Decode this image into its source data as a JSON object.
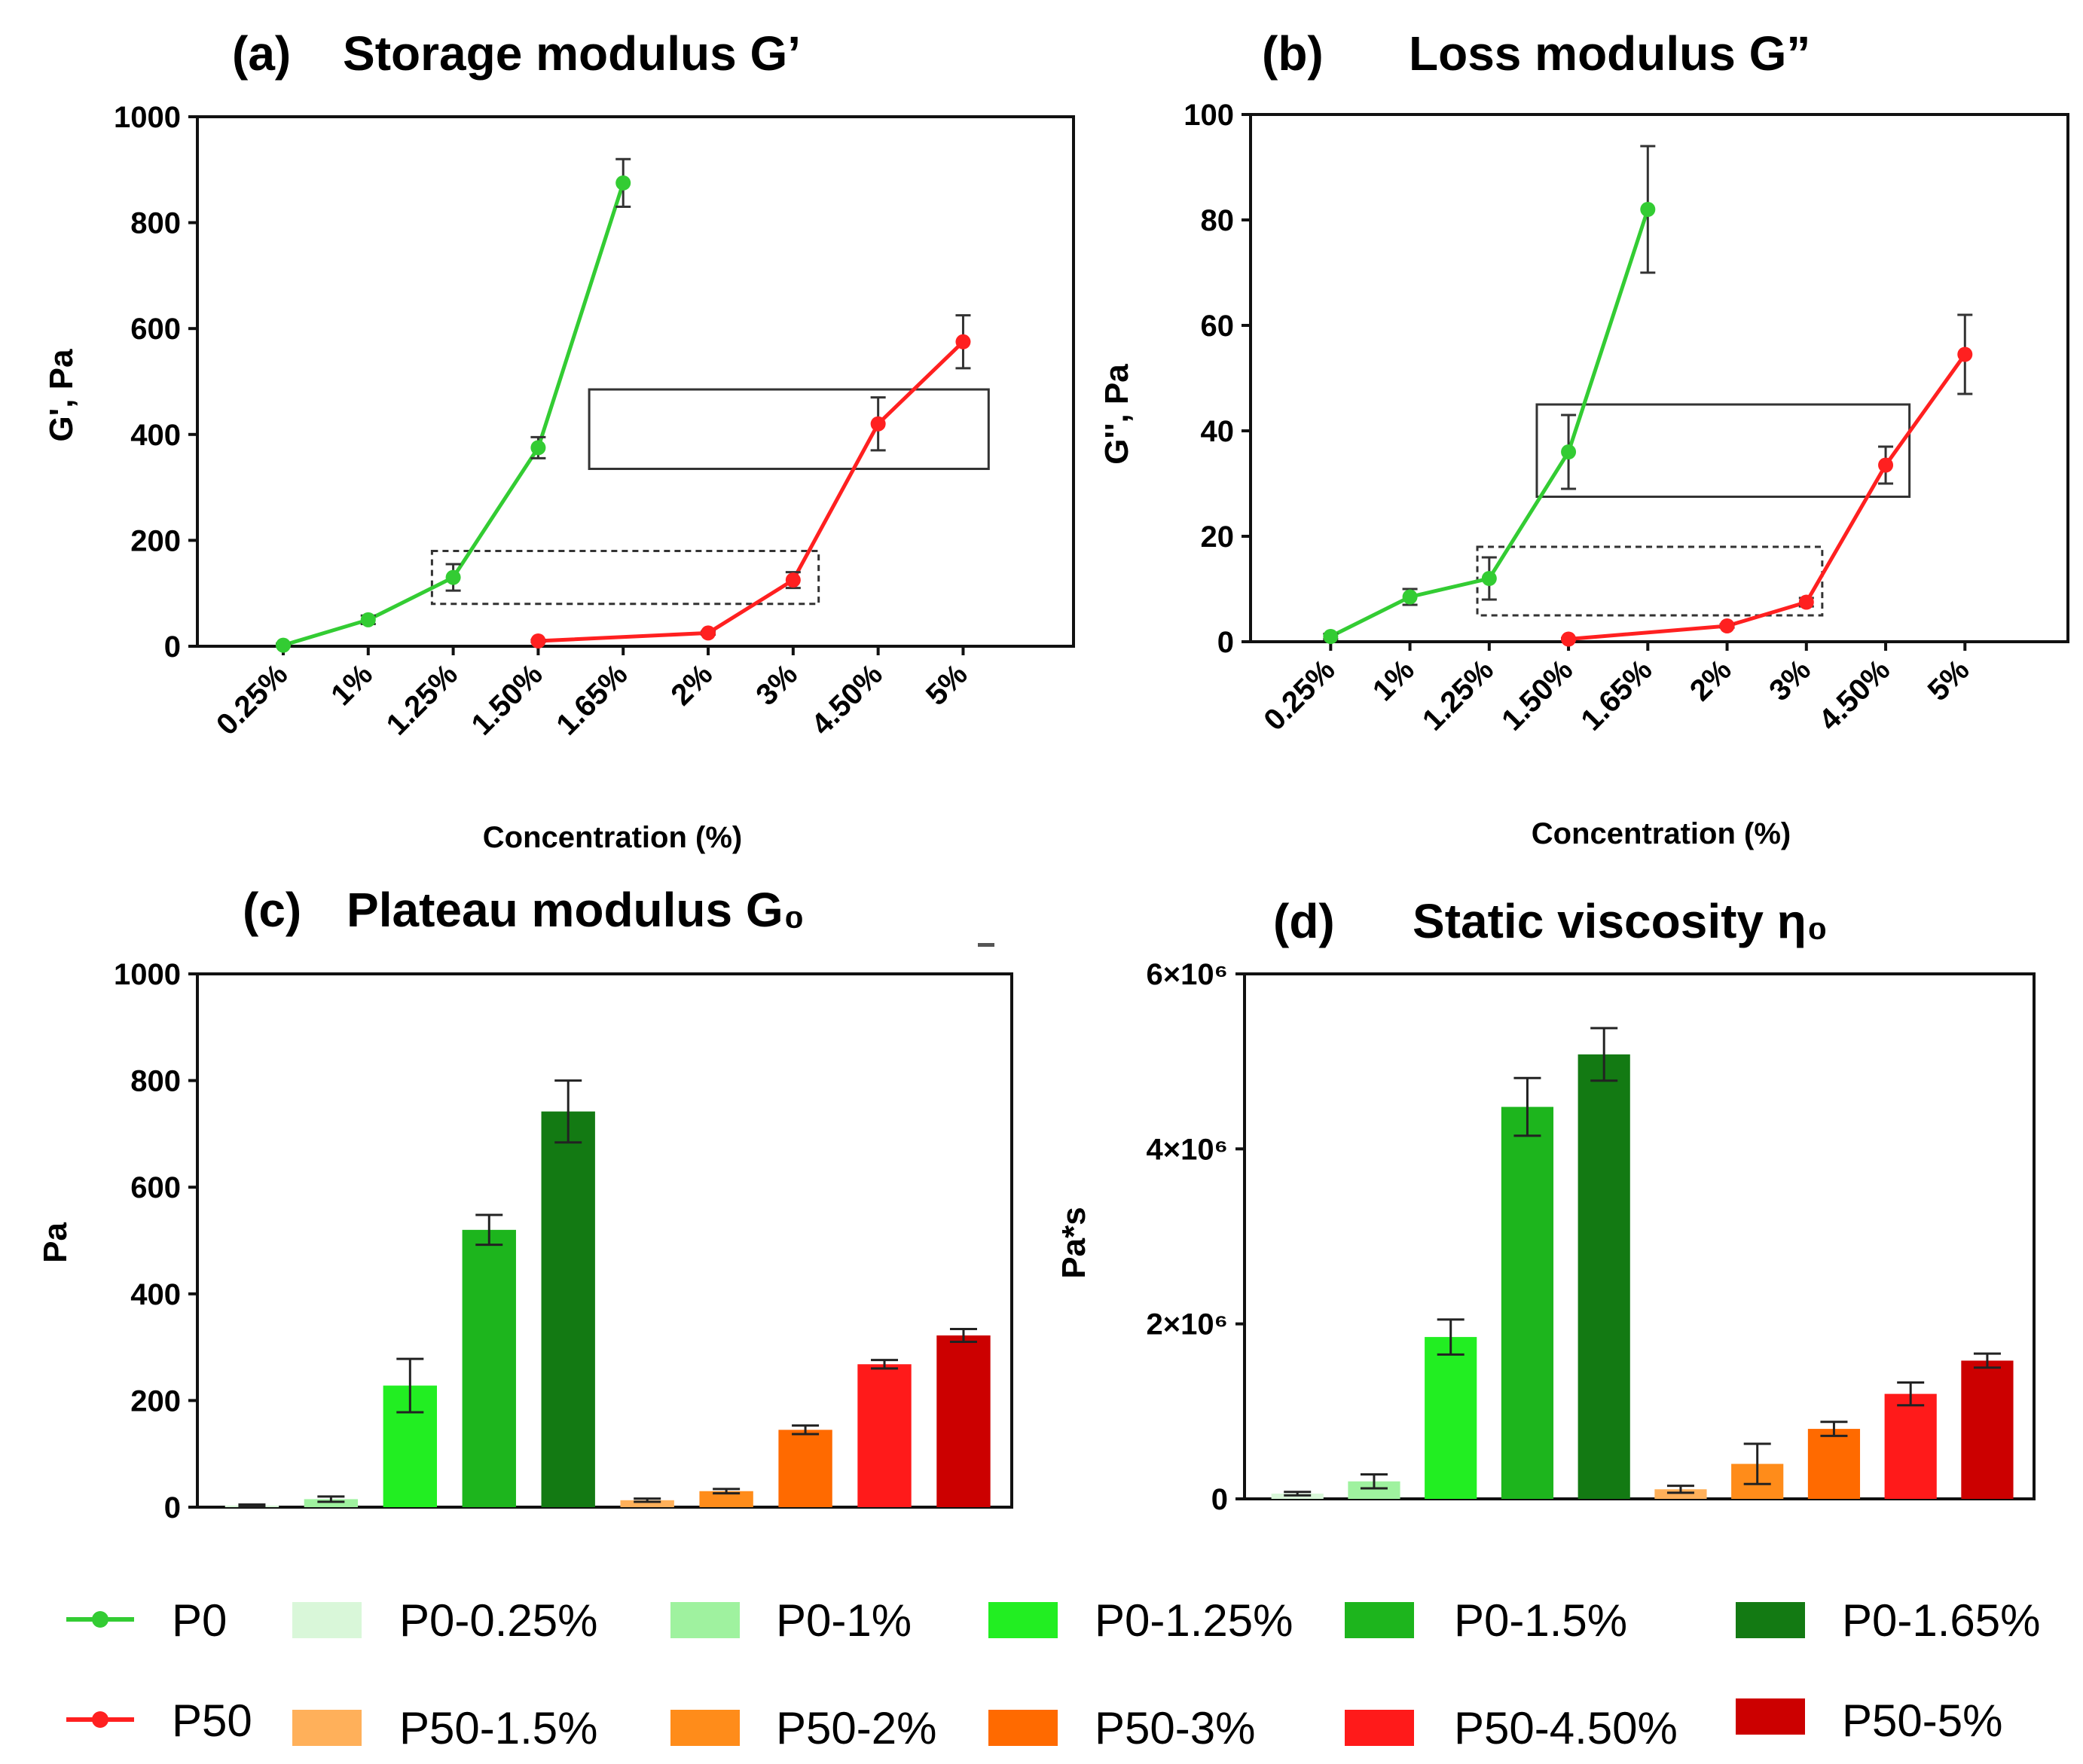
{
  "colors": {
    "P0": "#33cc33",
    "P50": "#ff2020",
    "P0-0.25%": "#d9f7d9",
    "P0-1%": "#9ff29f",
    "P0-1.25%": "#22ee22",
    "P0-1.5%": "#1db51d",
    "P0-1.65%": "#137a13",
    "P50-1.5%": "#ffb05a",
    "P50-2%": "#ff8c1a",
    "P50-3%": "#ff6a00",
    "P50-4.50%": "#ff1a1a",
    "P50-5%": "#cc0000"
  },
  "legend": {
    "row1": [
      "P0",
      "P0-0.25%",
      "P0-1%",
      "P0-1.25%",
      "P0-1.5%",
      "P0-1.65%"
    ],
    "row2": [
      "P50",
      "P50-1.5%",
      "P50-2%",
      "P50-3%",
      "P50-4.50%",
      "P50-5%"
    ]
  },
  "chart_data": [
    {
      "id": "a",
      "type": "line",
      "panel_label": "(a)",
      "title": "Storage modulus G’",
      "ylabel": "G', Pa",
      "xlabel": "Concentration (%)",
      "categories": [
        "0.25%",
        "1%",
        "1.25%",
        "1.50%",
        "1.65%",
        "2%",
        "3%",
        "4.50%",
        "5%"
      ],
      "ylim": [
        0,
        1000
      ],
      "yticks": [
        "0",
        "200",
        "400",
        "600",
        "800",
        "1000"
      ],
      "series": [
        {
          "name": "P0",
          "points": [
            {
              "i": 0,
              "y": 2,
              "err": 3
            },
            {
              "i": 1,
              "y": 50,
              "err": 8
            },
            {
              "i": 2,
              "y": 130,
              "err": 25
            },
            {
              "i": 3,
              "y": 375,
              "err": 20
            },
            {
              "i": 4,
              "y": 875,
              "err": 45
            }
          ]
        },
        {
          "name": "P50",
          "points": [
            {
              "i": 3,
              "y": 10,
              "err": 2
            },
            {
              "i": 5,
              "y": 25,
              "err": 3
            },
            {
              "i": 6,
              "y": 125,
              "err": 15
            },
            {
              "i": 7,
              "y": 420,
              "err": 50
            },
            {
              "i": 8,
              "y": 575,
              "err": 50
            }
          ]
        }
      ],
      "boxes": [
        {
          "style": "solid",
          "x0": 3.6,
          "x1": 8.3,
          "y0": 335,
          "y1": 485
        },
        {
          "style": "dashed",
          "x0": 1.75,
          "x1": 6.3,
          "y0": 80,
          "y1": 180
        }
      ]
    },
    {
      "id": "b",
      "type": "line",
      "panel_label": "(b)",
      "title": "Loss modulus G”",
      "ylabel": "G'', Pa",
      "xlabel": "Concentration (%)",
      "categories": [
        "0.25%",
        "1%",
        "1.25%",
        "1.50%",
        "1.65%",
        "2%",
        "3%",
        "4.50%",
        "5%"
      ],
      "ylim": [
        0,
        100
      ],
      "yticks": [
        "0",
        "20",
        "40",
        "60",
        "80",
        "100"
      ],
      "series": [
        {
          "name": "P0",
          "points": [
            {
              "i": 0,
              "y": 1,
              "err": 0.5
            },
            {
              "i": 1,
              "y": 8.5,
              "err": 1.5
            },
            {
              "i": 2,
              "y": 12,
              "err": 4
            },
            {
              "i": 3,
              "y": 36,
              "err": 7
            },
            {
              "i": 4,
              "y": 82,
              "err": 12
            }
          ]
        },
        {
          "name": "P50",
          "points": [
            {
              "i": 3,
              "y": 0.5,
              "err": 0.2
            },
            {
              "i": 5,
              "y": 3,
              "err": 0.3
            },
            {
              "i": 6,
              "y": 7.5,
              "err": 0.8
            },
            {
              "i": 7,
              "y": 33.5,
              "err": 3.5
            },
            {
              "i": 8,
              "y": 54.5,
              "err": 7.5
            }
          ]
        }
      ],
      "boxes": [
        {
          "style": "solid",
          "x0": 2.6,
          "x1": 7.3,
          "y0": 27.5,
          "y1": 45
        },
        {
          "style": "dashed",
          "x0": 1.85,
          "x1": 6.2,
          "y0": 5,
          "y1": 18
        }
      ]
    },
    {
      "id": "c",
      "type": "bar",
      "panel_label": "(c)",
      "title": "Plateau modulus G₀",
      "ylabel": "Pa",
      "ylim": [
        0,
        1000
      ],
      "yticks": [
        "0",
        "200",
        "400",
        "600",
        "800",
        "1000"
      ],
      "categories": [
        "P0-0.25%",
        "P0-1%",
        "P0-1.25%",
        "P0-1.5%",
        "P0-1.65%",
        "P50-1.5%",
        "P50-2%",
        "P50-3%",
        "P50-4.50%",
        "P50-5%"
      ],
      "values": [
        3,
        15,
        228,
        520,
        742,
        13,
        30,
        145,
        268,
        322
      ],
      "errors": [
        2,
        5,
        50,
        28,
        58,
        3,
        4,
        8,
        8,
        12
      ]
    },
    {
      "id": "d",
      "type": "bar",
      "panel_label": "(d)",
      "title": "Static viscosity η₀",
      "ylabel": "Pa*s",
      "ylim": [
        0,
        6000000
      ],
      "yticks": [
        "0",
        "2×10⁶",
        "4×10⁶",
        "6×10⁶"
      ],
      "categories": [
        "P0-0.25%",
        "P0-1%",
        "P0-1.25%",
        "P0-1.5%",
        "P0-1.65%",
        "P50-1.5%",
        "P50-2%",
        "P50-3%",
        "P50-4.50%",
        "P50-5%"
      ],
      "values": [
        60000,
        200000,
        1850000,
        4480000,
        5080000,
        110000,
        400000,
        800000,
        1200000,
        1580000
      ],
      "errors": [
        20000,
        80000,
        200000,
        330000,
        300000,
        40000,
        230000,
        80000,
        130000,
        80000
      ]
    }
  ]
}
